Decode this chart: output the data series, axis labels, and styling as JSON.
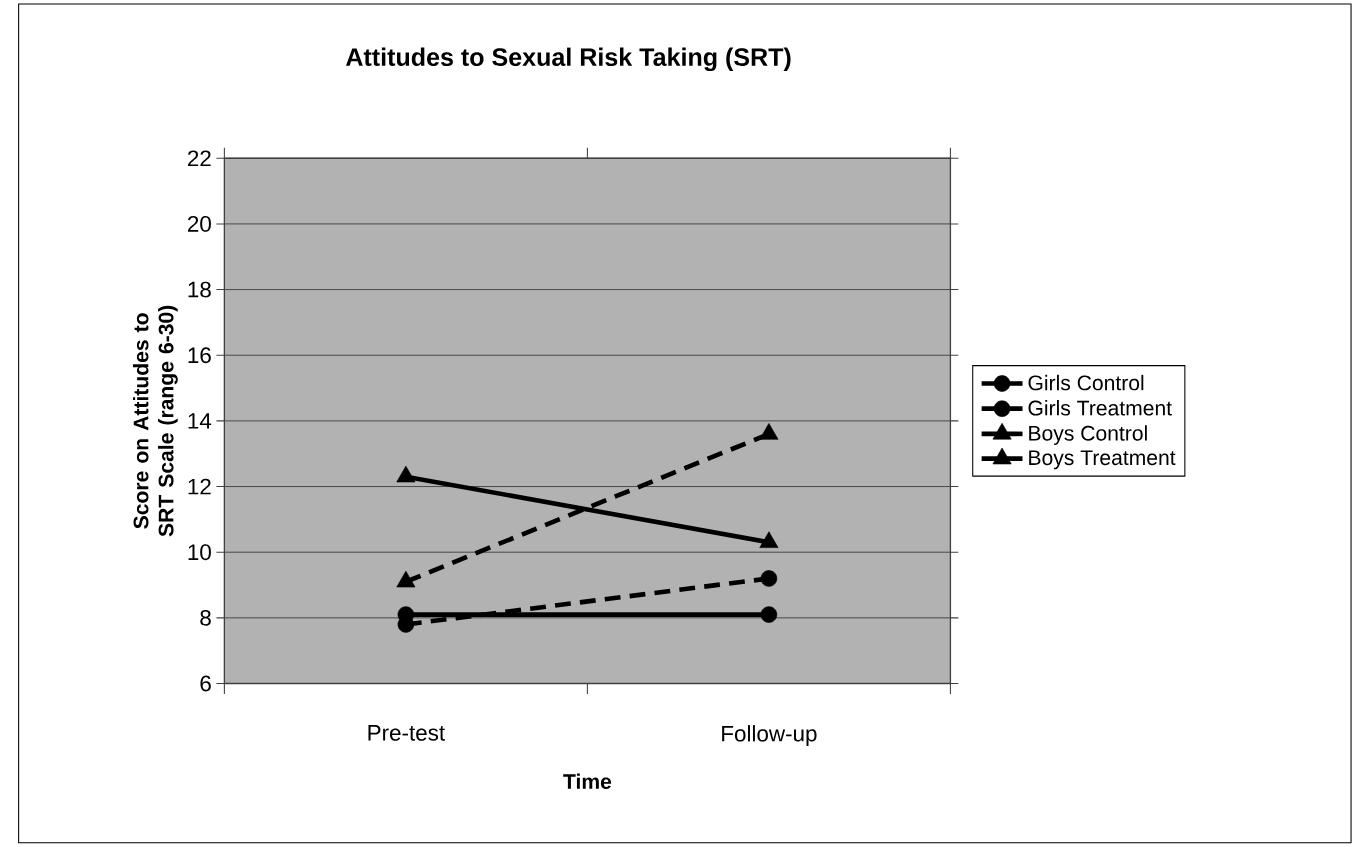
{
  "chart_data": {
    "type": "line",
    "title": "Attitudes to Sexual Risk Taking (SRT)",
    "xlabel": "Time",
    "ylabel": "Score on Attitudes to SRT Scale (range 6-30)",
    "categories": [
      "Pre-test",
      "Follow-up"
    ],
    "series": [
      {
        "name": "Girls Control",
        "color": "#000000",
        "values": [
          7.8,
          9.2
        ],
        "marker": "circle",
        "line_style": "dashed"
      },
      {
        "name": "Girls Treatment",
        "color": "#000000",
        "values": [
          8.1,
          8.1
        ],
        "marker": "circle",
        "line_style": "solid"
      },
      {
        "name": "Boys Control",
        "color": "#000000",
        "values": [
          9.1,
          13.6
        ],
        "marker": "triangle",
        "line_style": "dashed"
      },
      {
        "name": "Boys Treatment",
        "color": "#000000",
        "values": [
          12.3,
          10.3
        ],
        "marker": "triangle",
        "line_style": "solid"
      }
    ],
    "ylim": [
      6,
      22
    ],
    "yticks": [
      6,
      8,
      10,
      12,
      14,
      16,
      18,
      20,
      22
    ],
    "grid": "y",
    "legend": "right"
  }
}
